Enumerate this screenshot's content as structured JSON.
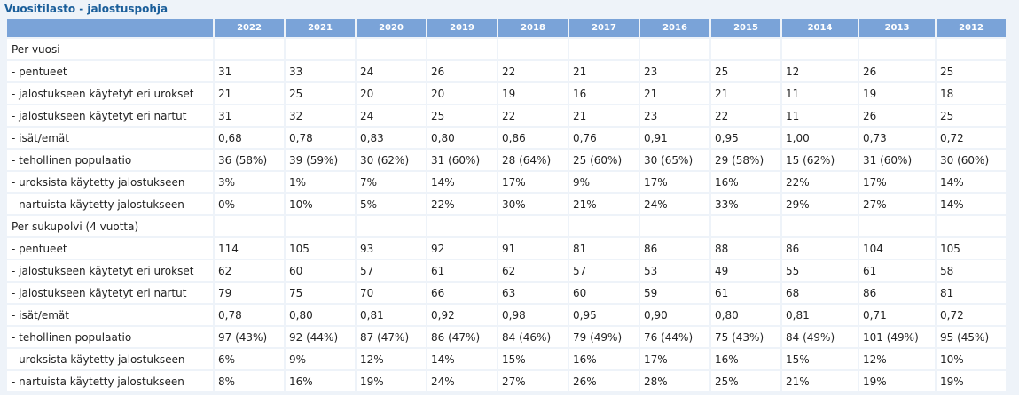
{
  "title": "Vuositilasto - jalostuspohja",
  "years": [
    "2022",
    "2021",
    "2020",
    "2019",
    "2018",
    "2017",
    "2016",
    "2015",
    "2014",
    "2013",
    "2012"
  ],
  "sections": [
    {
      "heading": "Per vuosi",
      "rows": [
        {
          "label": "- pentueet",
          "values": [
            "31",
            "33",
            "24",
            "26",
            "22",
            "21",
            "23",
            "25",
            "12",
            "26",
            "25"
          ]
        },
        {
          "label": "- jalostukseen käytetyt eri urokset",
          "values": [
            "21",
            "25",
            "20",
            "20",
            "19",
            "16",
            "21",
            "21",
            "11",
            "19",
            "18"
          ]
        },
        {
          "label": "- jalostukseen käytetyt eri nartut",
          "values": [
            "31",
            "32",
            "24",
            "25",
            "22",
            "21",
            "23",
            "22",
            "11",
            "26",
            "25"
          ]
        },
        {
          "label": "- isät/emät",
          "values": [
            "0,68",
            "0,78",
            "0,83",
            "0,80",
            "0,86",
            "0,76",
            "0,91",
            "0,95",
            "1,00",
            "0,73",
            "0,72"
          ]
        },
        {
          "label": "- tehollinen populaatio",
          "values": [
            "36 (58%)",
            "39 (59%)",
            "30 (62%)",
            "31 (60%)",
            "28 (64%)",
            "25 (60%)",
            "30 (65%)",
            "29 (58%)",
            "15 (62%)",
            "31 (60%)",
            "30 (60%)"
          ]
        },
        {
          "label": "- uroksista käytetty jalostukseen",
          "values": [
            "3%",
            "1%",
            "7%",
            "14%",
            "17%",
            "9%",
            "17%",
            "16%",
            "22%",
            "17%",
            "14%"
          ]
        },
        {
          "label": "- nartuista käytetty jalostukseen",
          "values": [
            "0%",
            "10%",
            "5%",
            "22%",
            "30%",
            "21%",
            "24%",
            "33%",
            "29%",
            "27%",
            "14%"
          ]
        }
      ]
    },
    {
      "heading": "Per sukupolvi (4 vuotta)",
      "rows": [
        {
          "label": "- pentueet",
          "values": [
            "114",
            "105",
            "93",
            "92",
            "91",
            "81",
            "86",
            "88",
            "86",
            "104",
            "105"
          ]
        },
        {
          "label": "- jalostukseen käytetyt eri urokset",
          "values": [
            "62",
            "60",
            "57",
            "61",
            "62",
            "57",
            "53",
            "49",
            "55",
            "61",
            "58"
          ]
        },
        {
          "label": "- jalostukseen käytetyt eri nartut",
          "values": [
            "79",
            "75",
            "70",
            "66",
            "63",
            "60",
            "59",
            "61",
            "68",
            "86",
            "81"
          ]
        },
        {
          "label": "- isät/emät",
          "values": [
            "0,78",
            "0,80",
            "0,81",
            "0,92",
            "0,98",
            "0,95",
            "0,90",
            "0,80",
            "0,81",
            "0,71",
            "0,72"
          ]
        },
        {
          "label": "- tehollinen populaatio",
          "values": [
            "97 (43%)",
            "92 (44%)",
            "87 (47%)",
            "86 (47%)",
            "84 (46%)",
            "79 (49%)",
            "76 (44%)",
            "75 (43%)",
            "84 (49%)",
            "101 (49%)",
            "95 (45%)"
          ]
        },
        {
          "label": "- uroksista käytetty jalostukseen",
          "values": [
            "6%",
            "9%",
            "12%",
            "14%",
            "15%",
            "16%",
            "17%",
            "16%",
            "15%",
            "12%",
            "10%"
          ]
        },
        {
          "label": "- nartuista käytetty jalostukseen",
          "values": [
            "8%",
            "16%",
            "19%",
            "24%",
            "27%",
            "26%",
            "28%",
            "25%",
            "21%",
            "19%",
            "19%"
          ]
        }
      ]
    }
  ]
}
